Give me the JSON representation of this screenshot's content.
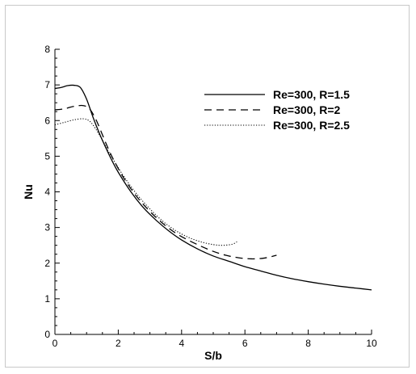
{
  "chart_data": {
    "type": "line",
    "xlabel": "S/b",
    "ylabel": "Nu",
    "xlim": [
      0,
      10
    ],
    "ylim": [
      0,
      8
    ],
    "x_ticks": [
      "0",
      "2",
      "4",
      "6",
      "8",
      "10"
    ],
    "y_ticks": [
      "0",
      "1",
      "2",
      "3",
      "4",
      "5",
      "6",
      "7",
      "8"
    ],
    "legend_position": "top-right",
    "grid": false,
    "series": [
      {
        "name": "Re=300, R=1.5",
        "style": "solid",
        "x": [
          0,
          0.2,
          0.4,
          0.6,
          0.8,
          1.0,
          1.2,
          1.4,
          1.6,
          1.8,
          2.0,
          2.4,
          2.8,
          3.2,
          3.6,
          4.0,
          4.5,
          5.0,
          5.5,
          6.0,
          6.5,
          7.0,
          7.5,
          8.0,
          8.5,
          9.0,
          9.5,
          10.0
        ],
        "y": [
          6.9,
          6.93,
          6.98,
          6.99,
          6.93,
          6.6,
          6.1,
          5.65,
          5.25,
          4.88,
          4.55,
          4.0,
          3.55,
          3.2,
          2.9,
          2.65,
          2.4,
          2.2,
          2.05,
          1.9,
          1.78,
          1.66,
          1.56,
          1.48,
          1.41,
          1.35,
          1.3,
          1.25
        ]
      },
      {
        "name": "Re=300, R=2",
        "style": "dashed",
        "x": [
          0,
          0.3,
          0.6,
          0.9,
          1.1,
          1.3,
          1.5,
          1.7,
          1.9,
          2.2,
          2.6,
          3.0,
          3.4,
          3.8,
          4.2,
          4.6,
          5.0,
          5.4,
          5.8,
          6.2,
          6.6,
          7.0
        ],
        "y": [
          6.3,
          6.33,
          6.4,
          6.42,
          6.32,
          6.02,
          5.6,
          5.18,
          4.82,
          4.35,
          3.85,
          3.45,
          3.12,
          2.85,
          2.65,
          2.48,
          2.33,
          2.22,
          2.15,
          2.12,
          2.14,
          2.22
        ]
      },
      {
        "name": "Re=300, R=2.5",
        "style": "dotted",
        "x": [
          0,
          0.3,
          0.6,
          0.9,
          1.1,
          1.3,
          1.5,
          1.7,
          1.9,
          2.2,
          2.6,
          3.0,
          3.4,
          3.8,
          4.2,
          4.6,
          5.0,
          5.3,
          5.6,
          5.75
        ],
        "y": [
          5.88,
          5.95,
          6.02,
          6.05,
          5.98,
          5.75,
          5.45,
          5.12,
          4.82,
          4.4,
          3.92,
          3.52,
          3.18,
          2.92,
          2.73,
          2.6,
          2.52,
          2.5,
          2.53,
          2.6
        ]
      }
    ]
  }
}
